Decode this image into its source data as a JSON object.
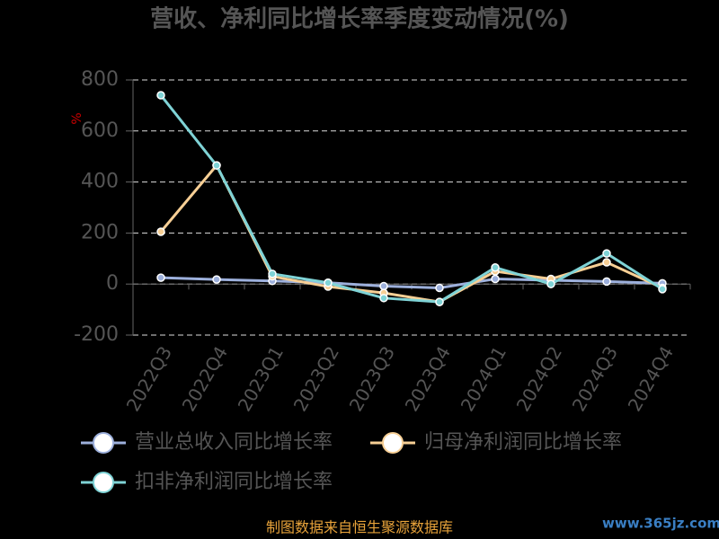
{
  "chart_data": {
    "type": "line",
    "title": "营收、净利同比增长率季度变动情况(%)",
    "y_unit": "%",
    "categories": [
      "2022Q3",
      "2022Q4",
      "2023Q1",
      "2023Q2",
      "2023Q3",
      "2023Q4",
      "2024Q1",
      "2024Q2",
      "2024Q3",
      "2024Q4"
    ],
    "series": [
      {
        "name": "营业总收入同比增长率",
        "color": "#9db0dc",
        "values": [
          25,
          18,
          12,
          5,
          -8,
          -15,
          20,
          15,
          10,
          3
        ]
      },
      {
        "name": "归母净利润同比增长率",
        "color": "#f7cf95",
        "values": [
          205,
          465,
          30,
          -10,
          -35,
          -70,
          50,
          20,
          85,
          -15
        ]
      },
      {
        "name": "扣非净利润同比增长率",
        "color": "#7fd3d6",
        "values": [
          740,
          465,
          40,
          5,
          -55,
          -70,
          65,
          0,
          120,
          -20
        ]
      }
    ],
    "ylim": [
      -200,
      800
    ],
    "yticks": [
      -200,
      0,
      200,
      400,
      600,
      800
    ],
    "grid": true,
    "source": "制图数据来自恒生聚源数据库",
    "watermark": "www.365jz.com"
  }
}
